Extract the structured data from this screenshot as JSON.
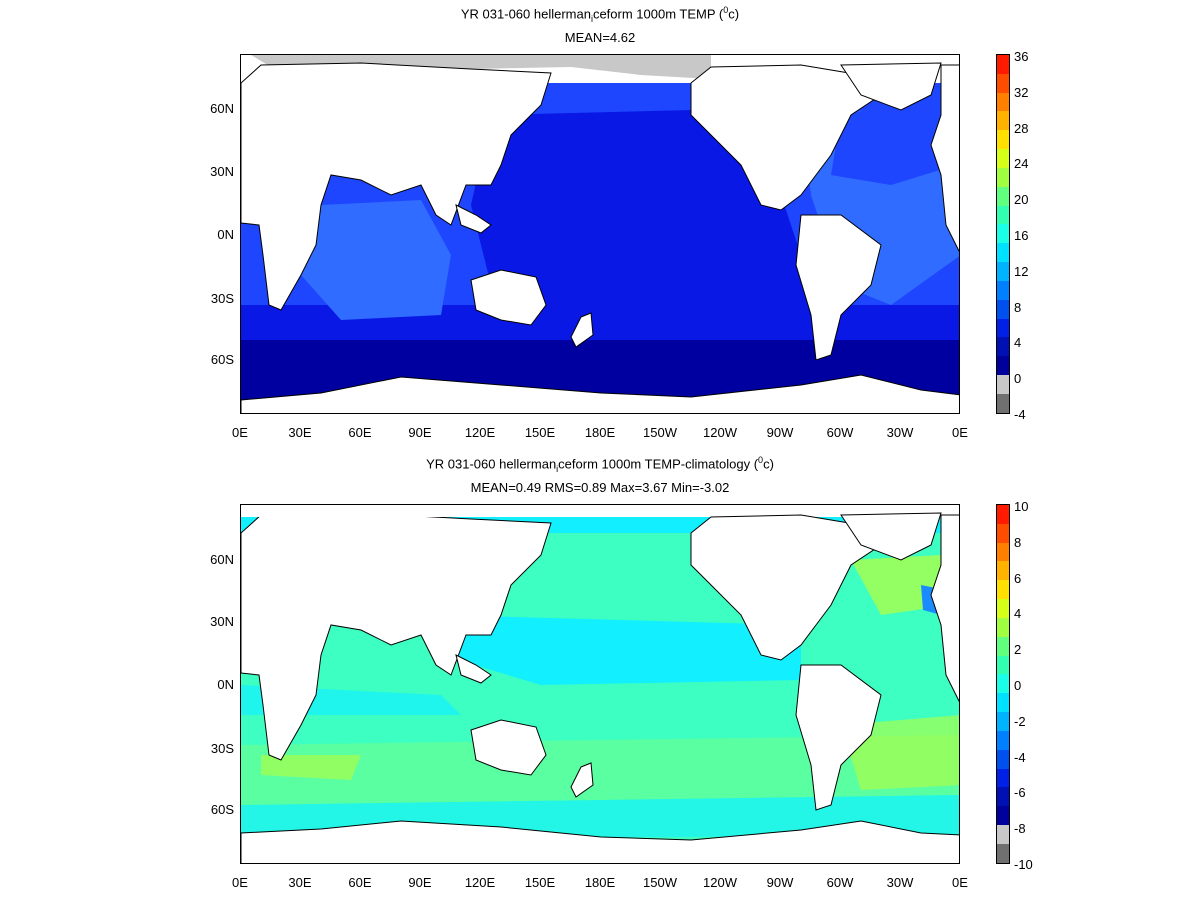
{
  "panel1": {
    "title_pre": "YR 031-060 hellerman",
    "title_sub": "i",
    "title_mid": "ceform 1000m TEMP (",
    "title_sup": "0",
    "title_post": "c)",
    "subtitle": "MEAN=4.62",
    "colorbar_labels": [
      "36",
      "32",
      "28",
      "24",
      "20",
      "16",
      "12",
      "8",
      "4",
      "0",
      "-4"
    ],
    "colorbar_colors": [
      "#ff1a00",
      "#ff4d00",
      "#ff8000",
      "#ffb300",
      "#ffe000",
      "#d6ff1a",
      "#a0ff40",
      "#60ff80",
      "#33ffb3",
      "#1affe6",
      "#00e0ff",
      "#00b3ff",
      "#0080ff",
      "#0050f0",
      "#0020e6",
      "#0010b3",
      "#00009a",
      "#c8c8c8",
      "#707070"
    ]
  },
  "panel2": {
    "title_pre": "YR 031-060 hellerman",
    "title_sub": "i",
    "title_mid": "ceform 1000m TEMP-climatology (",
    "title_sup": "0",
    "title_post": "c)",
    "subtitle": "MEAN=0.49   RMS=0.89   Max=3.67   Min=-3.02",
    "colorbar_labels": [
      "10",
      "8",
      "6",
      "4",
      "2",
      "0",
      "-2",
      "-4",
      "-6",
      "-8",
      "-10"
    ],
    "colorbar_colors": [
      "#ff1a00",
      "#ff4d00",
      "#ff8000",
      "#ffb300",
      "#ffe000",
      "#d6ff1a",
      "#a0ff40",
      "#60ff80",
      "#33ffb3",
      "#1affe6",
      "#00e0ff",
      "#00b3ff",
      "#0080ff",
      "#0050f0",
      "#0020e6",
      "#0010b3",
      "#00009a",
      "#c8c8c8",
      "#707070"
    ]
  },
  "axes": {
    "lat_labels": [
      "60N",
      "30N",
      "0N",
      "30S",
      "60S"
    ],
    "lon_labels": [
      "0E",
      "30E",
      "60E",
      "90E",
      "120E",
      "150E",
      "180E",
      "150W",
      "120W",
      "90W",
      "60W",
      "30W",
      "0E"
    ]
  },
  "colors": {
    "deep_blue": "#0000a0",
    "mid_blue": "#0a18e6",
    "bright_blue": "#1e46ff",
    "light_blue": "#2f6cff",
    "sea_ice_gray": "#c8c8c8",
    "anom_aqua": "#3dffc2",
    "anom_cyan": "#12f0ff",
    "anom_green": "#6dff8a",
    "anom_yellowgreen": "#b8ff3a",
    "anom_blue": "#1a8cff"
  }
}
